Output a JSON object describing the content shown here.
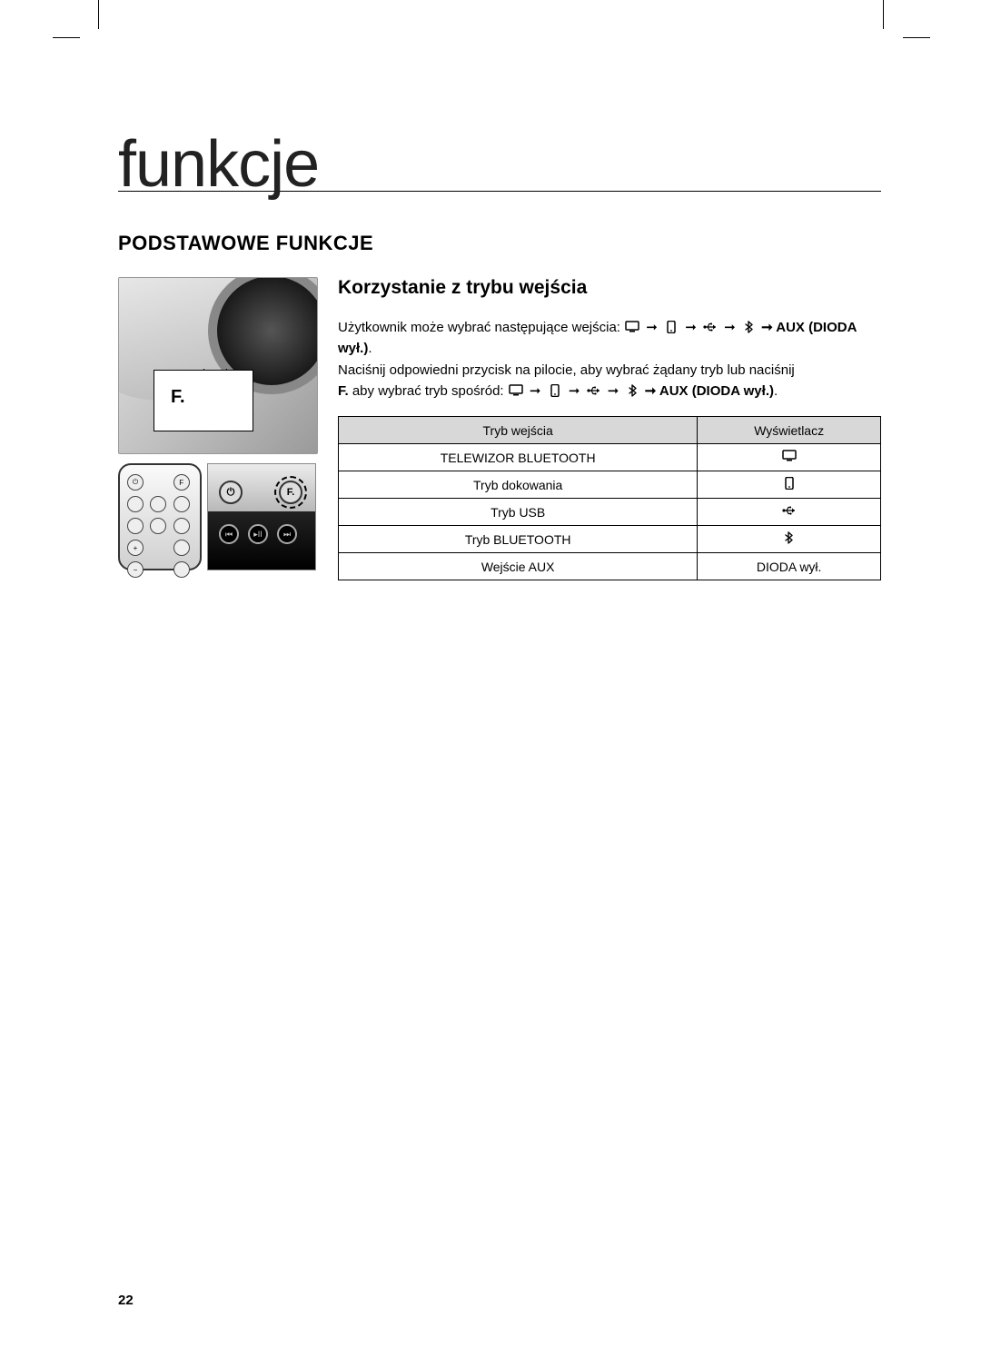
{
  "page": {
    "title": "funkcje",
    "section_heading": "PODSTAWOWE FUNKCJE",
    "subtitle": "Korzystanie z trybu wejścia",
    "page_number": "22",
    "illustration_label": "F."
  },
  "paragraph": {
    "p1_a": "Użytkownik może wybrać następujące wejścia: ",
    "p1_b": " ➞ AUX ",
    "p1_c": "(DIODA wył.)",
    "p1_d": ".",
    "p2": "Naciśnij odpowiedni przycisk na pilocie, aby wybrać żądany tryb lub naciśnij",
    "p3_a": "F.",
    "p3_b": "  aby wybrać tryb spośród: ",
    "p3_c": " ➞ AUX (DIODA wył.)",
    "p3_d": "."
  },
  "icons": {
    "arrow": "➞",
    "tv": "tv",
    "phone": "phone",
    "usb": "usb",
    "bt": "bt"
  },
  "table": {
    "header_mode": "Tryb wejścia",
    "header_display": "Wyświetlacz",
    "rows": [
      {
        "mode": "TELEWIZOR BLUETOOTH",
        "icon": "tv",
        "text": ""
      },
      {
        "mode": "Tryb dokowania",
        "icon": "phone",
        "text": ""
      },
      {
        "mode": "Tryb USB",
        "icon": "usb",
        "text": ""
      },
      {
        "mode": "Tryb BLUETOOTH",
        "icon": "bt",
        "text": ""
      },
      {
        "mode": "Wejście AUX",
        "icon": "",
        "text": "DIODA wył."
      }
    ]
  }
}
